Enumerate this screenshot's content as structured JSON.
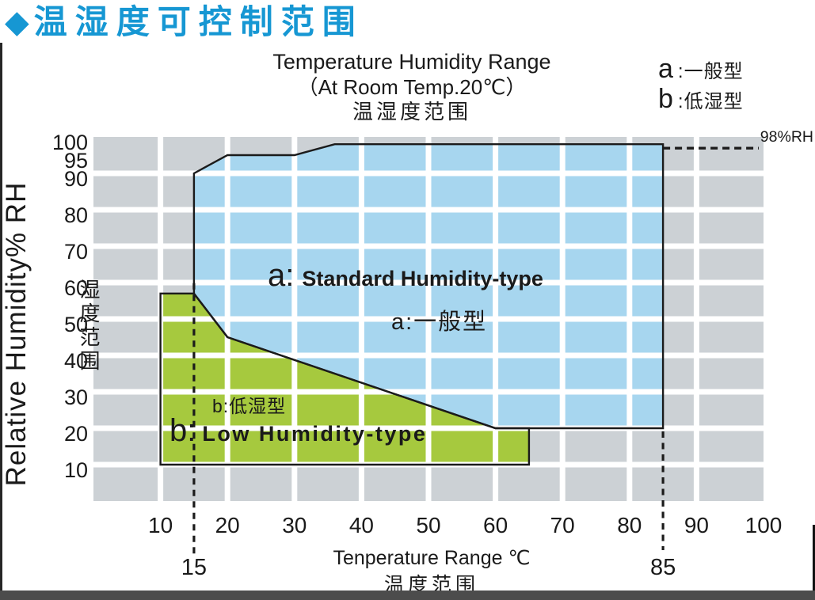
{
  "header": {
    "title": "温湿度可控制范围",
    "icon": "diamond-icon",
    "accent_color": "#1697d3"
  },
  "legend": {
    "items": [
      {
        "key": "a",
        "label": ":一般型"
      },
      {
        "key": "b",
        "label": ":低湿型"
      }
    ]
  },
  "colors": {
    "panel_gray": "#ccd1d5",
    "grid_white": "#ffffff",
    "outline_black": "#1b1b1b",
    "text": "#1a1a1a",
    "accent_blue": "#1697d3",
    "bottom_bar": "#4c4c4c"
  },
  "chart_data": {
    "type": "area",
    "title": "Temperature Humidity Range",
    "subtitle": "（At Room Temp.20℃）",
    "title_cn": "温湿度范围",
    "xlabel": "Tenperature Range ℃",
    "xlabel_cn": "温度范围",
    "ylabel": "Relative Humidity% RH",
    "ylabel_cn": "湿度范围",
    "xlim": [
      0,
      100
    ],
    "ylim": [
      0,
      100
    ],
    "x_ticks": [
      10,
      20,
      30,
      40,
      50,
      60,
      70,
      80,
      90,
      100
    ],
    "y_ticks": [
      100,
      95,
      90,
      80,
      70,
      60,
      50,
      40,
      30,
      20,
      10
    ],
    "grid": "white gridlines on gray panel",
    "legend_position": "top-right",
    "series": [
      {
        "id": "a",
        "region_label_prefix": "a:",
        "region_label_en": "Standard Humidity-type",
        "region_label_cn": "a:一般型",
        "fill_color": "#a7d6ef",
        "polygon_t_rh": [
          [
            15,
            90
          ],
          [
            20,
            95
          ],
          [
            30,
            95
          ],
          [
            36,
            98
          ],
          [
            85,
            98
          ],
          [
            85,
            20
          ],
          [
            60,
            20
          ],
          [
            20,
            45
          ],
          [
            15,
            57
          ]
        ]
      },
      {
        "id": "b",
        "region_label_prefix": "b:",
        "region_label_en": "Low Humidity-type",
        "region_label_cn": "b:低湿型",
        "fill_color": "#a6c93e",
        "polygon_t_rh": [
          [
            10,
            57
          ],
          [
            15,
            57
          ],
          [
            20,
            45
          ],
          [
            60,
            20
          ],
          [
            65,
            20
          ],
          [
            65,
            10
          ],
          [
            10,
            10
          ]
        ]
      }
    ],
    "annotations": [
      {
        "text": "98%RH",
        "type": "dashed-hline-callout",
        "y": 98,
        "from_x": 85
      },
      {
        "text": "15",
        "type": "dashed-vline",
        "x": 15,
        "from_y": 57
      },
      {
        "text": "85",
        "type": "dashed-vline",
        "x": 85,
        "from_y": 20
      }
    ]
  }
}
